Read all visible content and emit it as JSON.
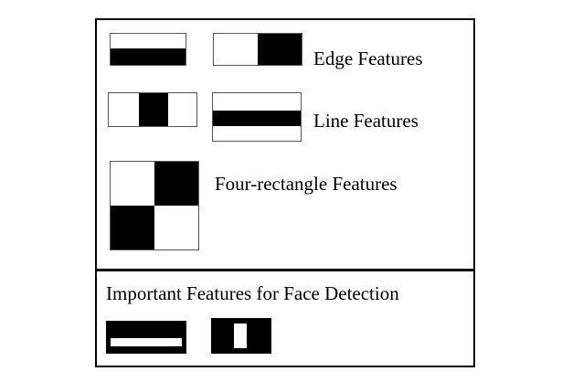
{
  "labels": {
    "edge": "Edge Features",
    "line": "Line Features",
    "four_rect": "Four-rectangle Features",
    "important_title": "Important Features for Face Detection"
  },
  "colors": {
    "background": "#ffffff",
    "feature_black": "#000000",
    "border": "#000000"
  }
}
